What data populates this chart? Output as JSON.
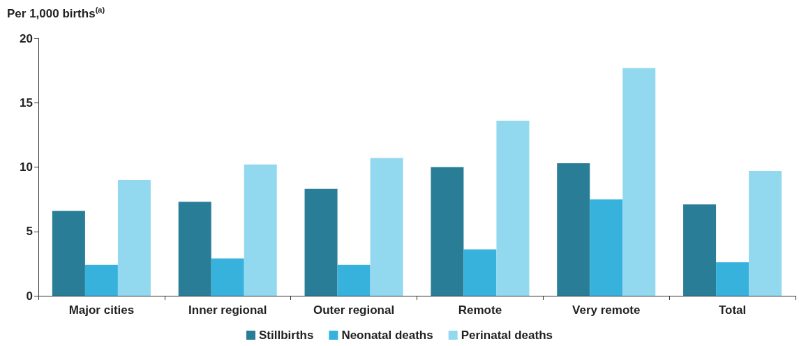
{
  "chart_data": {
    "type": "bar",
    "ylabel": "Per 1,000 births$^{(a)}$",
    "categories": [
      "Major cities",
      "Inner regional",
      "Outer regional",
      "Remote",
      "Very remote",
      "Total"
    ],
    "series": [
      {
        "name": "Stillbirths",
        "color": "#2a7d96",
        "values": [
          6.6,
          7.3,
          8.3,
          10.0,
          10.3,
          7.1
        ]
      },
      {
        "name": "Neonatal deaths",
        "color": "#36b2dc",
        "values": [
          2.4,
          2.9,
          2.4,
          3.6,
          7.5,
          2.6
        ]
      },
      {
        "name": "Perinatal deaths",
        "color": "#92d9f0",
        "values": [
          9.0,
          10.2,
          10.7,
          13.6,
          17.7,
          9.7
        ]
      }
    ],
    "ylim": [
      0,
      20
    ],
    "yticks": [
      0,
      5,
      10,
      15,
      20
    ],
    "grid": false,
    "legend": "bottom"
  }
}
